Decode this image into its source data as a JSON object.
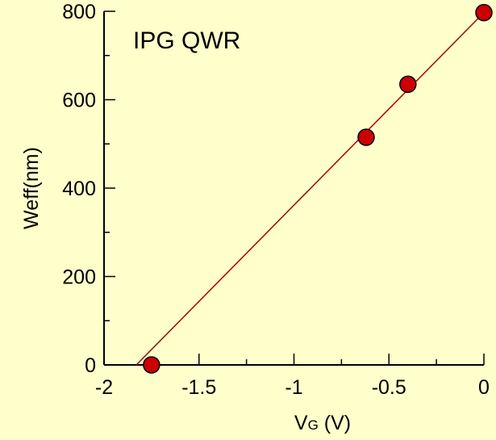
{
  "chart_data": {
    "type": "scatter",
    "title": "",
    "annotation": "IPG QWR",
    "xlabel_main": "V",
    "xlabel_sub": "G",
    "xlabel_unit": " (V)",
    "ylabel": "Weff(nm)",
    "xlim": [
      -2,
      0
    ],
    "ylim": [
      0,
      800
    ],
    "grid": false,
    "x_ticks": [
      -2,
      -1.5,
      -1,
      -0.5,
      0
    ],
    "x_tick_labels": [
      "-2",
      "-1.5",
      "-1",
      "-0.5",
      "0"
    ],
    "y_ticks": [
      0,
      200,
      400,
      600,
      800
    ],
    "y_tick_labels": [
      "0",
      "200",
      "400",
      "600",
      "800"
    ],
    "series": [
      {
        "x": [
          -1.75,
          -0.62,
          -0.4,
          0.0
        ],
        "y": [
          0,
          515,
          635,
          797
        ]
      }
    ],
    "fit_line": {
      "x": [
        -1.83,
        0.0
      ],
      "y": [
        0,
        797
      ]
    },
    "colors": {
      "background": "#FFFFCC",
      "marker_fill": "#CC0000",
      "marker_stroke": "#000000",
      "fit_line": "#AA0000",
      "axes": "#000000"
    }
  }
}
